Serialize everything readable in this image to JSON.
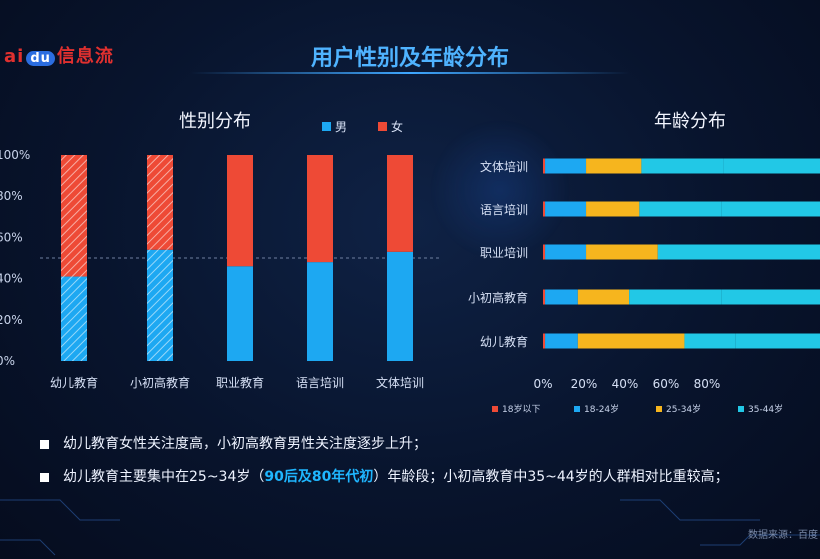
{
  "logo": {
    "pre": "ai",
    "du": "du",
    "post": "信息流"
  },
  "title": "用户性别及年龄分布",
  "source": "数据来源：百度",
  "chart_data": [
    {
      "type": "bar",
      "stacked": true,
      "title": "性别分布",
      "categories": [
        "幼儿教育",
        "小初高教育",
        "职业教育",
        "语言培训",
        "文体培训"
      ],
      "series": [
        {
          "name": "男",
          "values": [
            41,
            54,
            46,
            48,
            53
          ]
        },
        {
          "name": "女",
          "values": [
            59,
            46,
            54,
            52,
            47
          ]
        }
      ],
      "ylim": [
        0,
        100
      ],
      "yticks": [
        "0%",
        "20%",
        "40%",
        "60%",
        "80%",
        "100%"
      ],
      "reference_line": 50,
      "colors": {
        "男": "#1da8f2",
        "女": "#ee4a36"
      },
      "hatched_categories": [
        "幼儿教育",
        "小初高教育"
      ],
      "legend_position": "top"
    },
    {
      "type": "bar",
      "orientation": "horizontal",
      "stacked": true,
      "title": "年龄分布",
      "categories": [
        "文体培训",
        "语言培训",
        "职业培训",
        "小初高教育",
        "幼儿教育"
      ],
      "series": [
        {
          "name": "18岁以下",
          "values": [
            1,
            1,
            1,
            1,
            1
          ]
        },
        {
          "name": "18-24岁",
          "values": [
            20,
            20,
            20,
            16,
            16
          ]
        },
        {
          "name": "25-34岁",
          "values": [
            27,
            26,
            35,
            25,
            52
          ]
        },
        {
          "name": "35-44岁",
          "values": [
            40,
            40,
            34,
            45,
            25
          ]
        }
      ],
      "xlim": [
        0,
        100
      ],
      "xticks": [
        "0%",
        "20%",
        "40%",
        "60%",
        "80%"
      ],
      "colors": {
        "18岁以下": "#ee4a36",
        "18-24岁": "#1da8f2",
        "25-34岁": "#f6b51e",
        "35-44岁": "#22c8e6"
      },
      "legend_position": "bottom"
    }
  ],
  "notes": [
    {
      "text": "幼儿教育女性关注度高，小初高教育男性关注度逐步上升；"
    },
    {
      "pre": "幼儿教育主要集中在25~34岁（",
      "highlight": "90后及80年代初",
      "post": "）年龄段；小初高教育中35~44岁的人群相对比重较高；"
    }
  ]
}
